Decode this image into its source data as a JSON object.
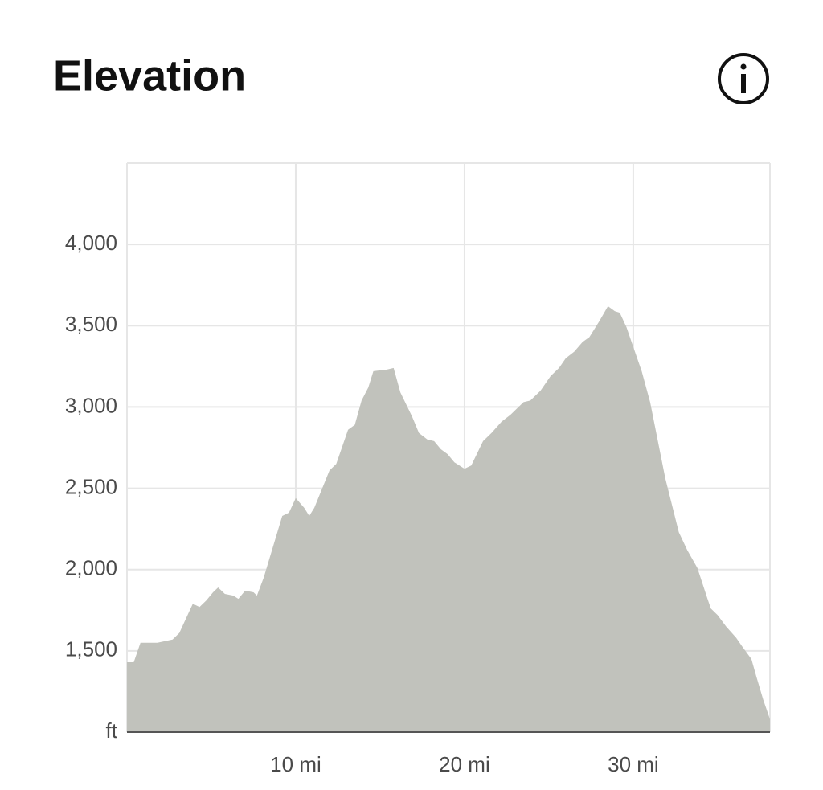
{
  "chart_data": {
    "type": "area",
    "title": "Elevation",
    "color": "#c1c2bc",
    "grid": true,
    "x": [
      0,
      0.4,
      0.8,
      1.8,
      2.7,
      3.1,
      3.9,
      4.3,
      4.7,
      5.1,
      5.4,
      5.8,
      6.3,
      6.6,
      7.0,
      7.5,
      7.7,
      8.1,
      9.2,
      9.6,
      10.0,
      10.5,
      10.8,
      11.1,
      12.0,
      12.4,
      13.1,
      13.5,
      13.9,
      14.3,
      14.6,
      15.4,
      15.8,
      16.2,
      16.9,
      17.3,
      17.8,
      18.2,
      18.6,
      19.0,
      19.4,
      20.0,
      20.4,
      21.1,
      21.6,
      22.2,
      22.7,
      23.5,
      23.9,
      24.5,
      25.1,
      25.6,
      26.0,
      26.5,
      27.0,
      27.4,
      28.0,
      28.5,
      28.9,
      29.2,
      29.6,
      30.0,
      30.5,
      31.0,
      31.9,
      32.7,
      33.2,
      33.8,
      34.4,
      34.6,
      35.0,
      35.5,
      36.1,
      36.5,
      37.0,
      37.3,
      37.7,
      38.1
    ],
    "values": [
      1430,
      1430,
      1550,
      1550,
      1570,
      1610,
      1790,
      1770,
      1810,
      1860,
      1890,
      1850,
      1840,
      1820,
      1870,
      1860,
      1840,
      1950,
      2330,
      2350,
      2440,
      2380,
      2330,
      2380,
      2610,
      2650,
      2860,
      2890,
      3040,
      3120,
      3220,
      3230,
      3240,
      3090,
      2940,
      2840,
      2800,
      2790,
      2740,
      2710,
      2660,
      2620,
      2640,
      2790,
      2840,
      2910,
      2950,
      3030,
      3040,
      3100,
      3190,
      3240,
      3300,
      3340,
      3400,
      3430,
      3530,
      3620,
      3590,
      3580,
      3490,
      3370,
      3220,
      3030,
      2560,
      2230,
      2120,
      2010,
      1820,
      1760,
      1720,
      1650,
      1580,
      1520,
      1450,
      1340,
      1200,
      1080
    ],
    "xlim": [
      0,
      38.1
    ],
    "ylim": [
      1000,
      4500
    ],
    "xticks": [
      {
        "value": 10,
        "label": "10 mi"
      },
      {
        "value": 20,
        "label": "20 mi"
      },
      {
        "value": 30,
        "label": "30 mi"
      }
    ],
    "yticks": [
      {
        "value": 1000,
        "label": "ft"
      },
      {
        "value": 1500,
        "label": "1,500"
      },
      {
        "value": 2000,
        "label": "2,000"
      },
      {
        "value": 2500,
        "label": "2,500"
      },
      {
        "value": 3000,
        "label": "3,000"
      },
      {
        "value": 3500,
        "label": "3,500"
      },
      {
        "value": 4000,
        "label": "4,000"
      }
    ]
  }
}
